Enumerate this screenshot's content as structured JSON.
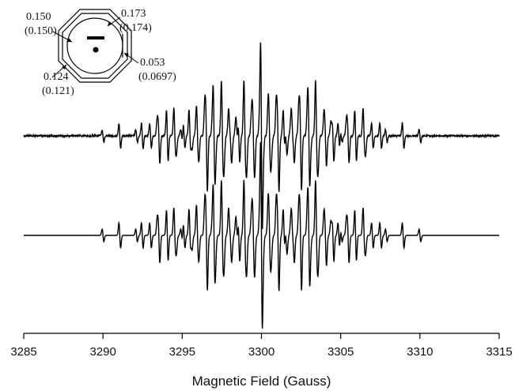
{
  "chart_data": {
    "type": "line",
    "title": "",
    "xlabel": "Magnetic Field (Gauss)",
    "ylabel": "",
    "xlim": [
      3285,
      3315
    ],
    "x_ticks": [
      "3285",
      "3290",
      "3295",
      "3300",
      "3305",
      "3310",
      "3315"
    ],
    "grid": false,
    "legend": "none",
    "center_field": 3300.0,
    "series": [
      {
        "kind": "experimental",
        "linewidth_gauss": 0.075,
        "noise": 0.035
      },
      {
        "kind": "simulated",
        "linewidth_gauss": 0.075,
        "noise": 0.0
      }
    ],
    "hyperfine_couplings": [
      {
        "experimental": "0.150",
        "calculated": "(0.150)"
      },
      {
        "experimental": "0.173",
        "calculated": "(0.174)"
      },
      {
        "experimental": "0.053",
        "calculated": "(0.0697)"
      },
      {
        "experimental": "0.124",
        "calculated": "(0.121)"
      }
    ]
  },
  "colors": {
    "line": "#000000",
    "background": "#ffffff"
  }
}
